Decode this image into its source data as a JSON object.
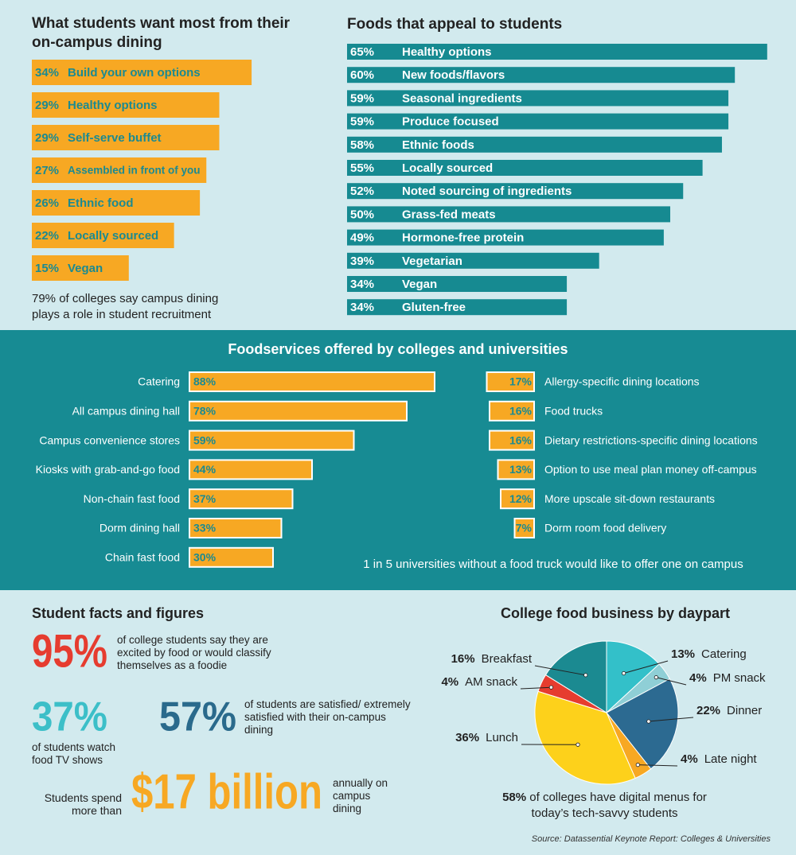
{
  "chart_data": [
    {
      "type": "bar",
      "title": "What students want most from their on-campus dining",
      "categories": [
        "Build your own options",
        "Healthy options",
        "Self-serve buffet",
        "Assembled in front of you",
        "Ethnic food",
        "Locally sourced",
        "Vegan"
      ],
      "values": [
        34,
        29,
        29,
        27,
        26,
        22,
        15
      ],
      "value_labels": [
        "34%",
        "29%",
        "29%",
        "27%",
        "26%",
        "22%",
        "15%"
      ],
      "color": "#f7a823",
      "note": "79% of colleges say campus dining plays a role in student recruitment"
    },
    {
      "type": "bar",
      "title": "Foods that appeal to students",
      "categories": [
        "Healthy options",
        "New foods/flavors",
        "Seasonal ingredients",
        "Produce focused",
        "Ethnic foods",
        "Locally sourced",
        "Noted sourcing of ingredients",
        "Grass-fed meats",
        "Hormone-free protein",
        "Vegetarian",
        "Vegan",
        "Gluten-free"
      ],
      "values": [
        65,
        60,
        59,
        59,
        58,
        55,
        52,
        50,
        49,
        39,
        34,
        34
      ],
      "value_labels": [
        "65%",
        "60%",
        "59%",
        "59%",
        "58%",
        "55%",
        "52%",
        "50%",
        "49%",
        "39%",
        "34%",
        "34%"
      ],
      "color": "#168a91"
    },
    {
      "type": "bar",
      "title": "Foodservices offered by colleges and universities",
      "color": "#f7a823",
      "columns": [
        {
          "categories": [
            "Catering",
            "All campus dining hall",
            "Campus convenience stores",
            "Kiosks with grab-and-go food",
            "Non-chain fast food",
            "Dorm dining hall",
            "Chain fast food"
          ],
          "values": [
            88,
            78,
            59,
            44,
            37,
            33,
            30
          ],
          "value_labels": [
            "88%",
            "78%",
            "59%",
            "44%",
            "37%",
            "33%",
            "30%"
          ]
        },
        {
          "categories": [
            "Allergy-specific dining locations",
            "Food trucks",
            "Dietary restrictions-specific dining locations",
            "Option to use meal plan money off-campus",
            "More upscale sit-down restaurants",
            "Dorm room food delivery"
          ],
          "values": [
            17,
            16,
            16,
            13,
            12,
            7
          ],
          "value_labels": [
            "17%",
            "16%",
            "16%",
            "13%",
            "12%",
            "7%"
          ]
        }
      ],
      "note": "1 in 5 universities without a food truck would like to offer one on campus"
    },
    {
      "type": "pie",
      "title": "College food business by daypart",
      "categories": [
        "Catering",
        "PM snack",
        "Dinner",
        "Late night",
        "Lunch",
        "AM snack",
        "Breakfast"
      ],
      "values": [
        13,
        4,
        22,
        4,
        36,
        4,
        16
      ],
      "value_labels": [
        "13%",
        "4%",
        "22%",
        "4%",
        "36%",
        "4%",
        "16%"
      ],
      "colors": [
        "#33c0c9",
        "#8fcfd6",
        "#2c6a91",
        "#f7a823",
        "#fdd11b",
        "#e63c2f",
        "#1b8a91"
      ],
      "note": [
        "58%",
        "of colleges have digital menus for today’s tech-savvy students"
      ]
    }
  ],
  "facts": {
    "title": "Student facts and figures",
    "items": [
      {
        "figure": "95%",
        "text": "of college students say they are excited by food or would classify themselves as a foodie",
        "color": "#e63c2f"
      },
      {
        "figure": "37%",
        "text": "of students watch food TV shows",
        "color": "#3cbfc8"
      },
      {
        "figure": "57%",
        "text": "of students are satisfied/ extremely satisfied with their on-campus dining",
        "color": "#2a6a8c"
      },
      {
        "figure": "$17 billion",
        "before": "Students spend more than",
        "text": "annually on campus dining",
        "color": "#f7a823"
      }
    ]
  },
  "source": "Source: Datassential Keynote Report: Colleges & Universities"
}
